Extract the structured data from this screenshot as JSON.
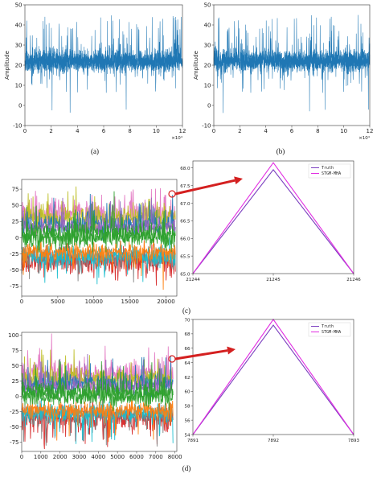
{
  "panel_labels": [
    "(a)",
    "(b)",
    "(c)",
    "(d)"
  ],
  "colors": {
    "signal": "#1f77b4",
    "truth": "#7b3fbf",
    "pred": "#e22ee2",
    "arrow": "#d42020",
    "multi": [
      "#e377c2",
      "#ff7f0e",
      "#2ca02c",
      "#1f77b4",
      "#17becf",
      "#d62728",
      "#bcbd22",
      "#9467bd",
      "#8c564b",
      "#7f7f7f"
    ]
  },
  "chart_data": [
    {
      "id": "a",
      "type": "line",
      "ylabel": "Amplitude",
      "xlim": [
        0,
        12
      ],
      "ylim": [
        -10,
        50
      ],
      "xticks": [
        "0",
        "2",
        "4",
        "6",
        "8",
        "10",
        "12"
      ],
      "yticks": [
        "-10",
        "0",
        "10",
        "20",
        "30",
        "40",
        "50"
      ],
      "x_multiplier": "×10⁴",
      "series_description": "noisy amplitude signal centred near 22 with spikes up to ~45 and dips to ~-5",
      "baseline": 22
    },
    {
      "id": "b",
      "type": "line",
      "ylabel": "Amplitude",
      "xlim": [
        0,
        12
      ],
      "ylim": [
        -10,
        50
      ],
      "xticks": [
        "0",
        "2",
        "4",
        "6",
        "8",
        "10",
        "12"
      ],
      "yticks": [
        "-10",
        "0",
        "10",
        "20",
        "30",
        "40",
        "50"
      ],
      "x_multiplier": "×10⁴",
      "baseline": 22
    },
    {
      "id": "c-left",
      "type": "line",
      "xlim": [
        0,
        21500
      ],
      "ylim": [
        -90,
        90
      ],
      "xticks": [
        "0",
        "5000",
        "10000",
        "15000",
        "20000"
      ],
      "yticks": [
        "-75",
        "-50",
        "-25",
        "0",
        "25",
        "50",
        "75"
      ],
      "series_count": 10
    },
    {
      "id": "c-right",
      "type": "line",
      "x": [
        "21244",
        "21245",
        "21246"
      ],
      "xlim": [
        21244,
        21246
      ],
      "ylim": [
        65.0,
        68.2
      ],
      "yticks": [
        "65.0",
        "65.5",
        "66.0",
        "66.5",
        "67.0",
        "67.5",
        "68.0"
      ],
      "legend": "top-right",
      "series": [
        {
          "name": "Truth",
          "values": [
            65.0,
            67.95,
            65.0
          ]
        },
        {
          "name": "STGM-MHA",
          "values": [
            65.0,
            68.15,
            65.0
          ]
        }
      ]
    },
    {
      "id": "d-left",
      "type": "line",
      "xlim": [
        0,
        8100
      ],
      "ylim": [
        -90,
        105
      ],
      "xticks": [
        "0",
        "1000",
        "2000",
        "3000",
        "4000",
        "5000",
        "6000",
        "7000",
        "8000"
      ],
      "yticks": [
        "-75",
        "-50",
        "-25",
        "0",
        "25",
        "50",
        "75",
        "100"
      ],
      "series_count": 10
    },
    {
      "id": "d-right",
      "type": "line",
      "x": [
        "7891",
        "7892",
        "7893"
      ],
      "xlim": [
        7891,
        7893
      ],
      "ylim": [
        54,
        70
      ],
      "yticks": [
        "54",
        "56",
        "58",
        "60",
        "62",
        "64",
        "66",
        "68",
        "70"
      ],
      "legend": "top-right",
      "series": [
        {
          "name": "Truth",
          "values": [
            54.0,
            69.2,
            54.0
          ]
        },
        {
          "name": "STGM-MHA",
          "values": [
            54.0,
            70.0,
            54.0
          ]
        }
      ]
    }
  ]
}
